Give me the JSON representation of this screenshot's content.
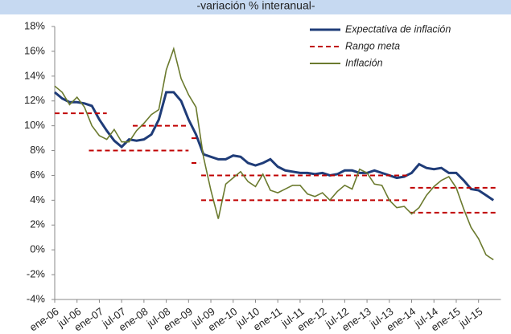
{
  "chart_data": {
    "type": "line",
    "subtitle": "-variación % interanual-",
    "categories": [
      "ene-06",
      null,
      null,
      "jul-06",
      null,
      null,
      "ene-07",
      null,
      null,
      "jul-07",
      null,
      null,
      "ene-08",
      null,
      null,
      "jul-08",
      null,
      null,
      "ene-09",
      null,
      null,
      "jul-09",
      null,
      null,
      "ene-10",
      null,
      null,
      "jul-10",
      null,
      null,
      "ene-11",
      null,
      null,
      "jul-11",
      null,
      null,
      "ene-12",
      null,
      null,
      "jul-12",
      null,
      null,
      "ene-13",
      null,
      null,
      "jul-13",
      null,
      null,
      "ene-14",
      null,
      null,
      "jul-14",
      null,
      null,
      "ene-15",
      null,
      null,
      "jul-15",
      null,
      null
    ],
    "series": [
      {
        "name": "Expectativa de inflación",
        "color": "#1f3c78",
        "values": [
          12.7,
          12.2,
          11.9,
          11.9,
          11.8,
          11.6,
          10.5,
          9.6,
          8.8,
          8.3,
          8.9,
          8.8,
          8.9,
          9.3,
          10.5,
          12.7,
          12.7,
          12.0,
          10.5,
          9.3,
          7.7,
          7.5,
          7.3,
          7.3,
          7.6,
          7.5,
          7.0,
          6.8,
          7.0,
          7.3,
          6.7,
          6.4,
          6.3,
          6.2,
          6.2,
          6.1,
          6.2,
          6.0,
          6.1,
          6.4,
          6.4,
          6.2,
          6.2,
          6.4,
          6.2,
          6.0,
          5.8,
          5.9,
          6.2,
          6.9,
          6.6,
          6.5,
          6.6,
          6.2,
          6.2,
          5.6,
          4.9,
          4.8,
          4.4,
          4.0
        ]
      },
      {
        "name": "Rango meta",
        "color": "#c00000",
        "segments": [
          {
            "from": 0,
            "to": 7,
            "value": 11
          },
          {
            "from": 4.6,
            "to": 18,
            "value": 8
          },
          {
            "from": 10.5,
            "to": 18,
            "value": 10
          },
          {
            "from": 18.4,
            "to": 19.5,
            "value": 9
          },
          {
            "from": 18.4,
            "to": 19.5,
            "value": 7
          },
          {
            "from": 19.7,
            "to": 47.8,
            "value": 6
          },
          {
            "from": 19.7,
            "to": 47.8,
            "value": 4
          },
          {
            "from": 47.8,
            "to": 59.5,
            "value": 5
          },
          {
            "from": 47.8,
            "to": 59.5,
            "value": 3
          }
        ]
      },
      {
        "name": "Inflación",
        "color": "#6b7a2e",
        "values": [
          13.2,
          12.7,
          11.7,
          12.3,
          11.5,
          10.0,
          9.2,
          8.9,
          9.7,
          8.7,
          8.7,
          9.6,
          10.2,
          10.9,
          11.3,
          14.5,
          16.2,
          13.8,
          12.5,
          11.5,
          7.5,
          4.8,
          2.5,
          5.3,
          5.8,
          6.3,
          5.5,
          5.1,
          6.1,
          4.8,
          4.6,
          4.9,
          5.2,
          5.2,
          4.5,
          4.3,
          4.6,
          4.0,
          4.7,
          5.2,
          4.9,
          6.5,
          6.2,
          5.3,
          5.2,
          4.0,
          3.4,
          3.5,
          2.9,
          3.4,
          4.4,
          5.1,
          5.6,
          5.9,
          5.0,
          3.3,
          1.8,
          0.9,
          -0.4,
          -0.8
        ]
      }
    ],
    "ylim": [
      -4,
      18
    ],
    "yticks": [
      {
        "value": -4,
        "label": "-4%"
      },
      {
        "value": -2,
        "label": "-2%"
      },
      {
        "value": 0,
        "label": "0%"
      },
      {
        "value": 2,
        "label": "2%"
      },
      {
        "value": 4,
        "label": "4%"
      },
      {
        "value": 6,
        "label": "6%"
      },
      {
        "value": 8,
        "label": "8%"
      },
      {
        "value": 10,
        "label": "10%"
      },
      {
        "value": 12,
        "label": "12%"
      },
      {
        "value": 14,
        "label": "14%"
      },
      {
        "value": 16,
        "label": "16%"
      },
      {
        "value": 18,
        "label": "18%"
      }
    ],
    "grid": false,
    "legend": "top-right"
  }
}
